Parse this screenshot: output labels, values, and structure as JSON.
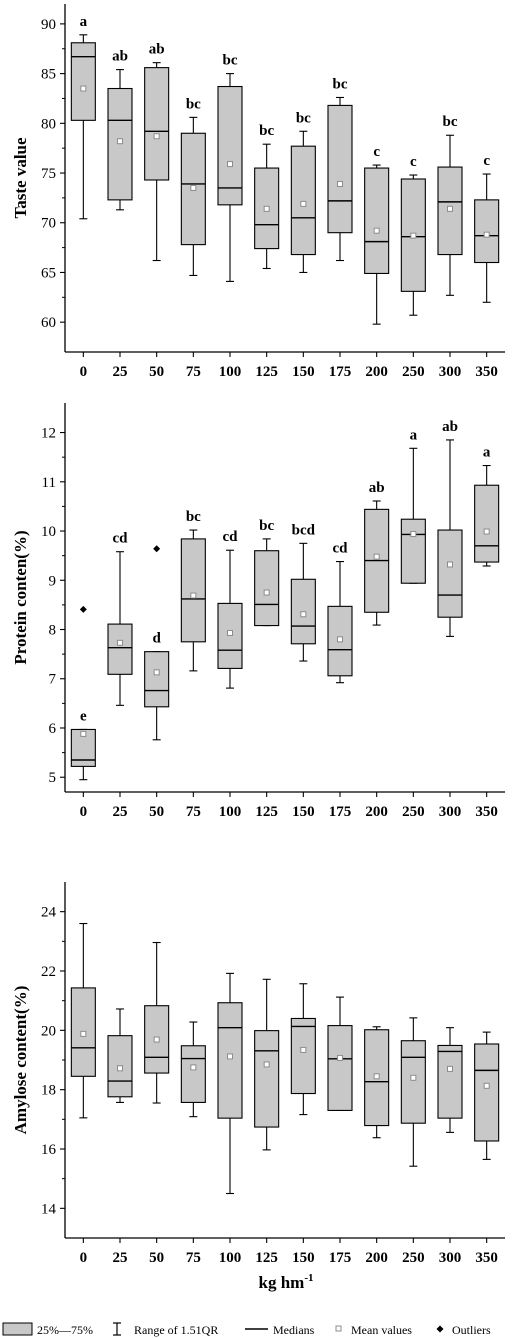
{
  "chart_data": [
    {
      "type": "box",
      "ylabel": "Taste value",
      "xlabel": "",
      "categories": [
        "0",
        "25",
        "50",
        "75",
        "100",
        "125",
        "150",
        "175",
        "200",
        "250",
        "300",
        "350"
      ],
      "ylim": [
        57,
        92
      ],
      "yticks": [
        60,
        65,
        70,
        75,
        80,
        85,
        90
      ],
      "boxes": [
        {
          "q1": 80.3,
          "median": 86.7,
          "q3": 88.1,
          "low": 70.4,
          "high": 88.9,
          "mean": 83.5,
          "letter": "a"
        },
        {
          "q1": 72.3,
          "median": 80.3,
          "q3": 83.5,
          "low": 71.3,
          "high": 85.4,
          "mean": 78.2,
          "letter": "ab"
        },
        {
          "q1": 74.3,
          "median": 79.2,
          "q3": 85.6,
          "low": 66.2,
          "high": 86.1,
          "mean": 78.7,
          "letter": "ab"
        },
        {
          "q1": 67.8,
          "median": 73.9,
          "q3": 79.0,
          "low": 64.7,
          "high": 80.6,
          "mean": 73.5,
          "letter": "bc"
        },
        {
          "q1": 71.8,
          "median": 73.5,
          "q3": 83.7,
          "low": 64.1,
          "high": 85.0,
          "mean": 75.9,
          "letter": "bc"
        },
        {
          "q1": 67.4,
          "median": 69.8,
          "q3": 75.5,
          "low": 65.4,
          "high": 77.9,
          "mean": 71.4,
          "letter": "bc"
        },
        {
          "q1": 66.8,
          "median": 70.5,
          "q3": 77.7,
          "low": 65.0,
          "high": 79.2,
          "mean": 71.9,
          "letter": "bc"
        },
        {
          "q1": 69.0,
          "median": 72.2,
          "q3": 81.8,
          "low": 66.2,
          "high": 82.6,
          "mean": 73.9,
          "letter": "bc"
        },
        {
          "q1": 64.9,
          "median": 68.1,
          "q3": 75.5,
          "low": 59.8,
          "high": 75.8,
          "mean": 69.2,
          "letter": "c"
        },
        {
          "q1": 63.1,
          "median": 68.6,
          "q3": 74.4,
          "low": 60.7,
          "high": 74.8,
          "mean": 68.7,
          "letter": "c"
        },
        {
          "q1": 66.8,
          "median": 72.1,
          "q3": 75.6,
          "low": 62.7,
          "high": 78.8,
          "mean": 71.4,
          "letter": "bc"
        },
        {
          "q1": 66.0,
          "median": 68.7,
          "q3": 72.3,
          "low": 62.0,
          "high": 74.9,
          "mean": 68.8,
          "letter": "c"
        }
      ]
    },
    {
      "type": "box",
      "ylabel": "Protein conten(%)",
      "xlabel": "",
      "categories": [
        "0",
        "25",
        "50",
        "75",
        "100",
        "125",
        "150",
        "175",
        "200",
        "250",
        "300",
        "350"
      ],
      "ylim": [
        4.7,
        12.6
      ],
      "yticks": [
        5,
        6,
        7,
        8,
        9,
        10,
        11,
        12
      ],
      "boxes": [
        {
          "q1": 5.22,
          "median": 5.35,
          "q3": 5.97,
          "low": 4.95,
          "high": 5.97,
          "mean": 5.88,
          "letter": "e",
          "outlier": 8.41
        },
        {
          "q1": 7.09,
          "median": 7.63,
          "q3": 8.11,
          "low": 6.46,
          "high": 9.58,
          "mean": 7.73,
          "letter": "cd"
        },
        {
          "q1": 6.43,
          "median": 6.76,
          "q3": 7.55,
          "low": 5.76,
          "high": 7.55,
          "mean": 7.13,
          "letter": "d",
          "outlier": 9.64
        },
        {
          "q1": 7.75,
          "median": 8.62,
          "q3": 9.84,
          "low": 7.16,
          "high": 10.02,
          "mean": 8.69,
          "letter": "bc"
        },
        {
          "q1": 7.21,
          "median": 7.58,
          "q3": 8.53,
          "low": 6.81,
          "high": 9.61,
          "mean": 7.93,
          "letter": "cd"
        },
        {
          "q1": 8.08,
          "median": 8.51,
          "q3": 9.6,
          "low": 8.08,
          "high": 9.84,
          "mean": 8.75,
          "letter": "bc"
        },
        {
          "q1": 7.71,
          "median": 8.07,
          "q3": 9.02,
          "low": 7.36,
          "high": 9.75,
          "mean": 8.31,
          "letter": "bcd"
        },
        {
          "q1": 7.06,
          "median": 7.59,
          "q3": 8.47,
          "low": 6.92,
          "high": 9.38,
          "mean": 7.8,
          "letter": "cd"
        },
        {
          "q1": 8.35,
          "median": 9.4,
          "q3": 10.44,
          "low": 8.09,
          "high": 10.61,
          "mean": 9.48,
          "letter": "ab"
        },
        {
          "q1": 8.94,
          "median": 9.93,
          "q3": 10.24,
          "low": 8.94,
          "high": 11.68,
          "mean": 9.94,
          "letter": "a"
        },
        {
          "q1": 8.25,
          "median": 8.7,
          "q3": 10.02,
          "low": 7.86,
          "high": 11.85,
          "mean": 9.32,
          "letter": "ab"
        },
        {
          "q1": 9.37,
          "median": 9.7,
          "q3": 10.93,
          "low": 9.29,
          "high": 11.33,
          "mean": 9.99,
          "letter": "a"
        }
      ]
    },
    {
      "type": "box",
      "ylabel": "Amylose content(%)",
      "xlabel": "kg hm",
      "xlabel_sup": "-1",
      "categories": [
        "0",
        "25",
        "50",
        "75",
        "100",
        "125",
        "150",
        "175",
        "200",
        "250",
        "300",
        "350"
      ],
      "ylim": [
        13.0,
        25.0
      ],
      "yticks": [
        14,
        16,
        18,
        20,
        22,
        24
      ],
      "boxes": [
        {
          "q1": 18.45,
          "median": 19.41,
          "q3": 21.43,
          "low": 17.05,
          "high": 23.6,
          "mean": 19.88
        },
        {
          "q1": 17.76,
          "median": 18.29,
          "q3": 19.82,
          "low": 17.57,
          "high": 20.72,
          "mean": 18.72
        },
        {
          "q1": 18.56,
          "median": 19.09,
          "q3": 20.83,
          "low": 17.55,
          "high": 22.96,
          "mean": 19.69
        },
        {
          "q1": 17.57,
          "median": 19.05,
          "q3": 19.48,
          "low": 17.09,
          "high": 20.28,
          "mean": 18.75
        },
        {
          "q1": 17.04,
          "median": 20.09,
          "q3": 20.93,
          "low": 14.5,
          "high": 21.92,
          "mean": 19.12
        },
        {
          "q1": 16.74,
          "median": 19.31,
          "q3": 19.99,
          "low": 15.97,
          "high": 21.72,
          "mean": 18.85
        },
        {
          "q1": 17.87,
          "median": 20.13,
          "q3": 20.4,
          "low": 17.16,
          "high": 21.57,
          "mean": 19.34
        },
        {
          "q1": 17.3,
          "median": 19.04,
          "q3": 20.16,
          "low": 17.3,
          "high": 21.12,
          "mean": 19.07
        },
        {
          "q1": 16.79,
          "median": 18.27,
          "q3": 20.02,
          "low": 16.38,
          "high": 20.12,
          "mean": 18.45
        },
        {
          "q1": 16.87,
          "median": 19.09,
          "q3": 19.65,
          "low": 15.42,
          "high": 20.42,
          "mean": 18.4
        },
        {
          "q1": 17.04,
          "median": 19.29,
          "q3": 19.49,
          "low": 16.56,
          "high": 20.09,
          "mean": 18.7
        },
        {
          "q1": 16.27,
          "median": 18.65,
          "q3": 19.54,
          "low": 15.65,
          "high": 19.94,
          "mean": 18.13
        }
      ]
    }
  ],
  "legend": {
    "box": "25%—75%",
    "whisker": "Range of 1.51QR",
    "median": "Medians",
    "mean": "Mean values",
    "outlier": "Outliers"
  },
  "colors": {
    "box_fill": "#c8c8c8",
    "mean_marker": "#8c8c8c",
    "line": "#000000"
  }
}
